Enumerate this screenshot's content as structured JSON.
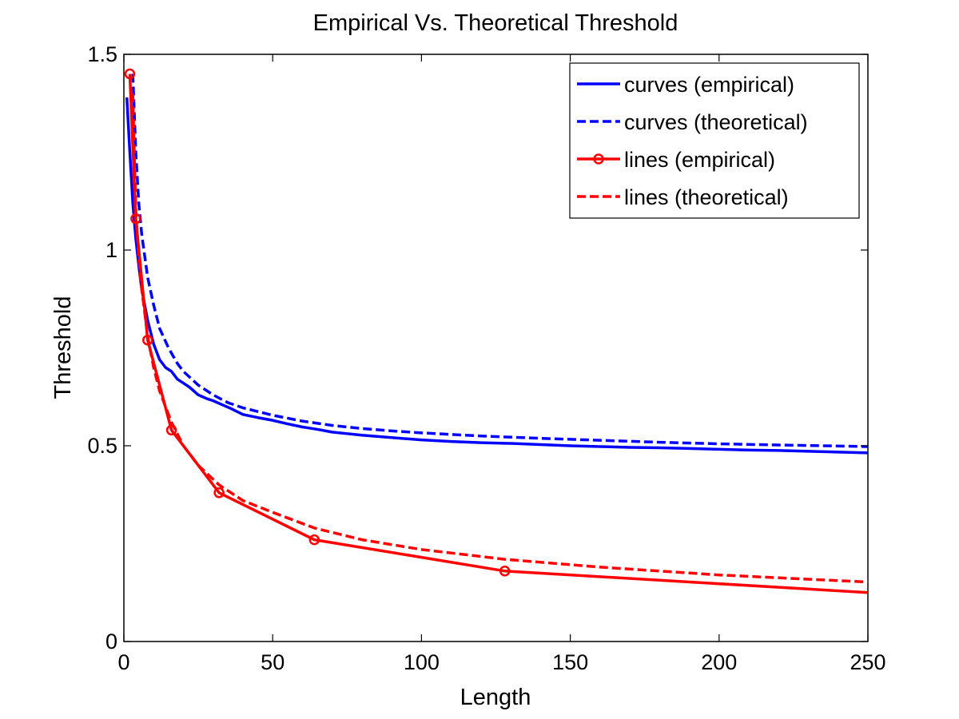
{
  "chart_data": {
    "type": "line",
    "title": "Empirical Vs. Theoretical Threshold",
    "xlabel": "Length",
    "ylabel": "Threshold",
    "xlim": [
      0,
      250
    ],
    "ylim": [
      0,
      1.5
    ],
    "xticks": [
      0,
      50,
      100,
      150,
      200,
      250
    ],
    "yticks": [
      0,
      0.5,
      1,
      1.5
    ],
    "xtick_labels": [
      "0",
      "50",
      "100",
      "150",
      "200",
      "250"
    ],
    "ytick_labels": [
      "0",
      "0.5",
      "1",
      "1.5"
    ],
    "grid": false,
    "legend_position": "top-right",
    "series": [
      {
        "name": "curves (empirical)",
        "color": "#0000ff",
        "style": "solid",
        "marker": "none",
        "x": [
          1,
          2,
          3,
          4,
          5,
          6,
          8,
          10,
          12,
          14,
          16,
          18,
          20,
          22,
          25,
          28,
          30,
          33,
          36,
          40,
          45,
          50,
          55,
          60,
          65,
          70,
          75,
          80,
          90,
          100,
          110,
          120,
          130,
          140,
          150,
          160,
          170,
          180,
          190,
          200,
          210,
          220,
          230,
          240,
          250
        ],
        "y": [
          1.39,
          1.25,
          1.12,
          1.03,
          0.96,
          0.9,
          0.82,
          0.76,
          0.72,
          0.7,
          0.69,
          0.67,
          0.66,
          0.65,
          0.63,
          0.62,
          0.615,
          0.605,
          0.595,
          0.58,
          0.572,
          0.565,
          0.556,
          0.548,
          0.542,
          0.535,
          0.531,
          0.527,
          0.521,
          0.515,
          0.511,
          0.508,
          0.506,
          0.503,
          0.5,
          0.498,
          0.496,
          0.495,
          0.493,
          0.491,
          0.489,
          0.488,
          0.486,
          0.484,
          0.482
        ]
      },
      {
        "name": "curves (theoretical)",
        "color": "#0000ff",
        "style": "dashed",
        "marker": "none",
        "x": [
          3,
          3.5,
          4,
          5,
          6,
          8,
          10,
          12,
          15,
          18,
          20,
          25,
          30,
          35,
          40,
          50,
          60,
          70,
          80,
          90,
          100,
          120,
          140,
          160,
          180,
          200,
          220,
          250
        ],
        "y": [
          1.45,
          1.35,
          1.25,
          1.12,
          1.04,
          0.93,
          0.86,
          0.8,
          0.75,
          0.71,
          0.69,
          0.655,
          0.63,
          0.61,
          0.597,
          0.578,
          0.563,
          0.552,
          0.544,
          0.538,
          0.533,
          0.525,
          0.519,
          0.514,
          0.509,
          0.505,
          0.502,
          0.498
        ]
      },
      {
        "name": "lines (empirical)",
        "color": "#ff0000",
        "style": "solid",
        "marker": "circle",
        "x": [
          2,
          4,
          8,
          16,
          32,
          64,
          128,
          250
        ],
        "y": [
          1.45,
          1.08,
          0.77,
          0.54,
          0.38,
          0.26,
          0.18,
          0.125
        ]
      },
      {
        "name": "lines (theoretical)",
        "color": "#ff0000",
        "style": "dashed",
        "marker": "none",
        "x": [
          3,
          4,
          5,
          6,
          8,
          10,
          12,
          16,
          20,
          25,
          32,
          40,
          50,
          64,
          80,
          100,
          128,
          160,
          200,
          250
        ],
        "y": [
          1.4,
          1.1,
          0.98,
          0.9,
          0.78,
          0.7,
          0.64,
          0.56,
          0.5,
          0.45,
          0.4,
          0.36,
          0.33,
          0.29,
          0.26,
          0.235,
          0.21,
          0.19,
          0.17,
          0.152
        ]
      }
    ]
  }
}
